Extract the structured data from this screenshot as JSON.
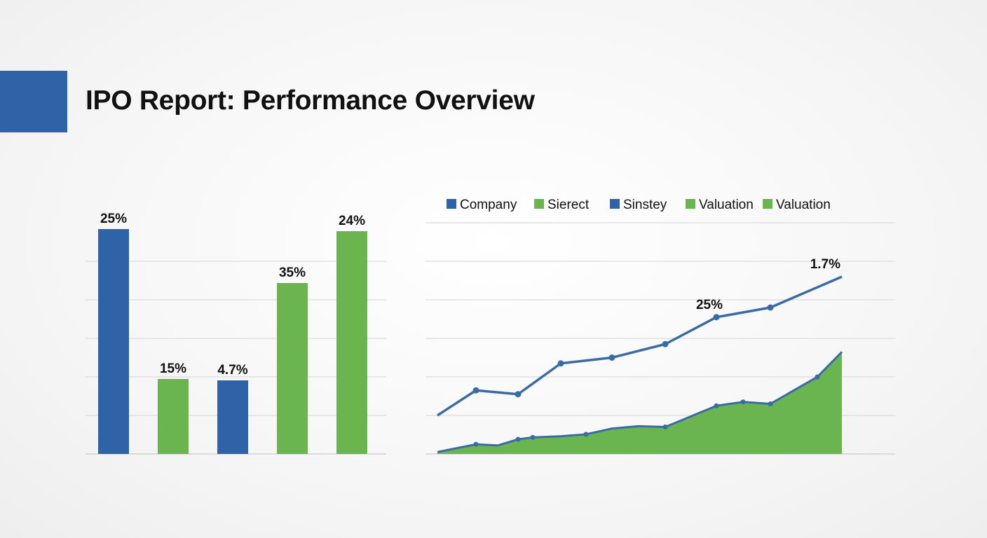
{
  "header": {
    "title": "IPO Report: Performance Overview"
  },
  "colors": {
    "blue": "#2e63a8",
    "green": "#6ab550",
    "line_blue": "#3b6ba5"
  },
  "chart_data": [
    {
      "type": "bar",
      "categories": [
        "",
        "",
        "",
        "",
        ""
      ],
      "values": [
        25,
        15,
        4.7,
        35,
        24
      ],
      "data_labels": [
        "25%",
        "15%",
        "4.7%",
        "35%",
        "24%"
      ],
      "bar_colors": [
        "#2e63a8",
        "#6ab550",
        "#2e63a8",
        "#6ab550",
        "#6ab550"
      ],
      "grid": true
    },
    {
      "type": "line",
      "legend": {
        "position": "top",
        "items": [
          {
            "label": "Company",
            "color": "#2e63a8"
          },
          {
            "label": "Sierect",
            "color": "#6ab550"
          },
          {
            "label": "Sinstey",
            "color": "#2e63a8"
          },
          {
            "label": "Valuation",
            "color": "#6ab550"
          },
          {
            "label": "Valuation",
            "color": "#6ab550"
          }
        ]
      },
      "grid": true,
      "series": [
        {
          "type": "line",
          "color": "#3b6ba5",
          "values": [
            10,
            16.5,
            15.5,
            23.5,
            25,
            28.5,
            35.5,
            38,
            46
          ]
        },
        {
          "type": "area",
          "color": "#6ab550",
          "values": [
            0.5,
            2.5,
            2.2,
            3.8,
            4.3,
            4.6,
            5.1,
            6.6,
            7.2,
            7,
            12.5,
            13.5,
            13,
            20,
            26.5
          ]
        }
      ],
      "annotations": [
        {
          "text": "25%",
          "series": 0,
          "index": 6
        },
        {
          "text": "1.7%",
          "series": 0,
          "index": 8
        }
      ]
    }
  ]
}
